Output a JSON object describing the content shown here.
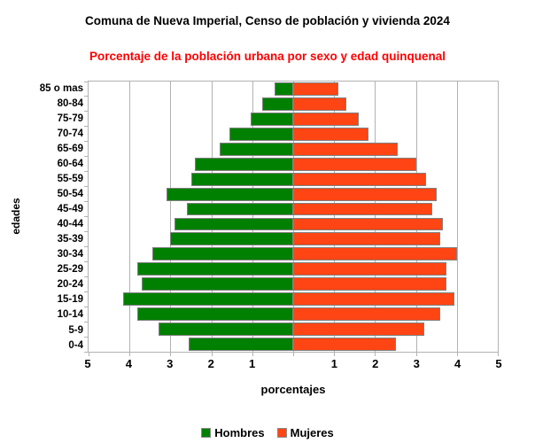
{
  "title": "Comuna de Nueva Imperial, Censo de población y vivienda 2024",
  "subtitle": "Porcentaje de la población urbana por sexo y edad quinquenal",
  "colors": {
    "hombres": "#008000",
    "mujeres": "#ff4514",
    "title_text": "#000000",
    "subtitle_text": "#ff0000",
    "grid": "#b2b2b2",
    "bar_border": "#808080"
  },
  "chart_data": {
    "type": "bar",
    "variant": "population-pyramid",
    "title": "Comuna de Nueva Imperial, Censo de población y vivienda 2024",
    "subtitle": "Porcentaje de la población urbana por sexo y edad quinquenal",
    "categories": [
      "85 o mas",
      "80-84",
      "75-79",
      "70-74",
      "65-69",
      "60-64",
      "55-59",
      "50-54",
      "45-49",
      "40-44",
      "35-39",
      "30-34",
      "25-29",
      "20-24",
      "15-19",
      "10-14",
      "5-9",
      "0-4"
    ],
    "series": [
      {
        "name": "Hombres",
        "side": "left",
        "color": "#008000",
        "values": [
          0.45,
          0.75,
          1.05,
          1.55,
          1.8,
          2.4,
          2.5,
          3.1,
          2.6,
          2.9,
          3.0,
          3.45,
          3.8,
          3.7,
          4.15,
          3.8,
          3.3,
          2.55
        ]
      },
      {
        "name": "Mujeres",
        "side": "right",
        "color": "#ff4514",
        "values": [
          1.1,
          1.3,
          1.6,
          1.85,
          2.55,
          3.0,
          3.25,
          3.5,
          3.4,
          3.65,
          3.6,
          4.0,
          3.75,
          3.75,
          3.95,
          3.6,
          3.2,
          2.5
        ]
      }
    ],
    "xlabel": "porcentajes",
    "ylabel": "edades",
    "xlim": [
      -5,
      5
    ],
    "x_tick_labels_left": [
      "5",
      "4",
      "3",
      "2",
      "1"
    ],
    "x_tick_labels_right": [
      "1",
      "2",
      "3",
      "4",
      "5"
    ],
    "grid": true,
    "legend_position": "bottom"
  }
}
